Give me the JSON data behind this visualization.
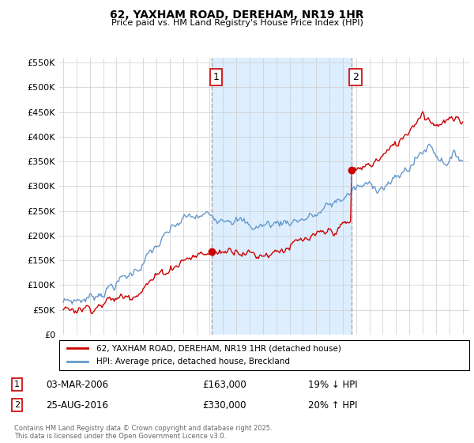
{
  "title": "62, YAXHAM ROAD, DEREHAM, NR19 1HR",
  "subtitle": "Price paid vs. HM Land Registry's House Price Index (HPI)",
  "red_label": "62, YAXHAM ROAD, DEREHAM, NR19 1HR (detached house)",
  "blue_label": "HPI: Average price, detached house, Breckland",
  "marker1_date": "03-MAR-2006",
  "marker1_price": 163000,
  "marker1_pct": "19% ↓ HPI",
  "marker2_date": "25-AUG-2016",
  "marker2_price": 330000,
  "marker2_pct": "20% ↑ HPI",
  "footer": "Contains HM Land Registry data © Crown copyright and database right 2025.\nThis data is licensed under the Open Government Licence v3.0.",
  "ylim": [
    0,
    560000
  ],
  "yticks": [
    0,
    50000,
    100000,
    150000,
    200000,
    250000,
    300000,
    350000,
    400000,
    450000,
    500000,
    550000
  ],
  "red_color": "#cc0000",
  "blue_color": "#6699cc",
  "shade_color": "#ddeeff",
  "grid_color": "#cccccc",
  "background_color": "#ffffff",
  "marker1_x_year": 2006.17,
  "marker2_x_year": 2016.65,
  "xmin": 1995,
  "xmax": 2025
}
